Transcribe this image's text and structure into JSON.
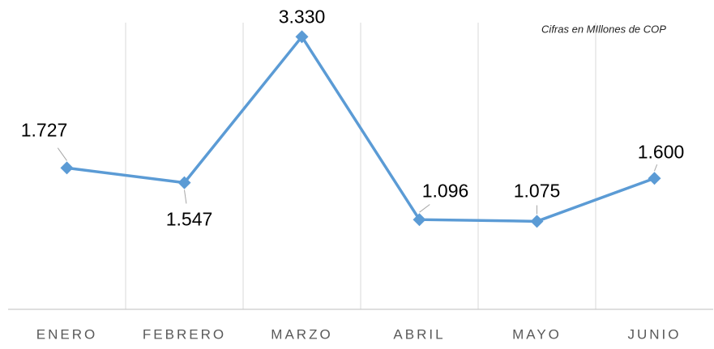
{
  "chart_data": {
    "type": "line",
    "annotation": "Cifras en MIllones de COP",
    "categories": [
      "ENERO",
      "FEBRERO",
      "MARZO",
      "ABRIL",
      "MAYO",
      "JUNIO"
    ],
    "series": [
      {
        "color": "#5b9bd5",
        "values": [
          1727,
          1547,
          3330,
          1096,
          1075,
          1600
        ],
        "value_labels": [
          "1.727",
          "1.547",
          "3.330",
          "1.096",
          "1.075",
          "1.600"
        ]
      }
    ],
    "grid": true
  }
}
